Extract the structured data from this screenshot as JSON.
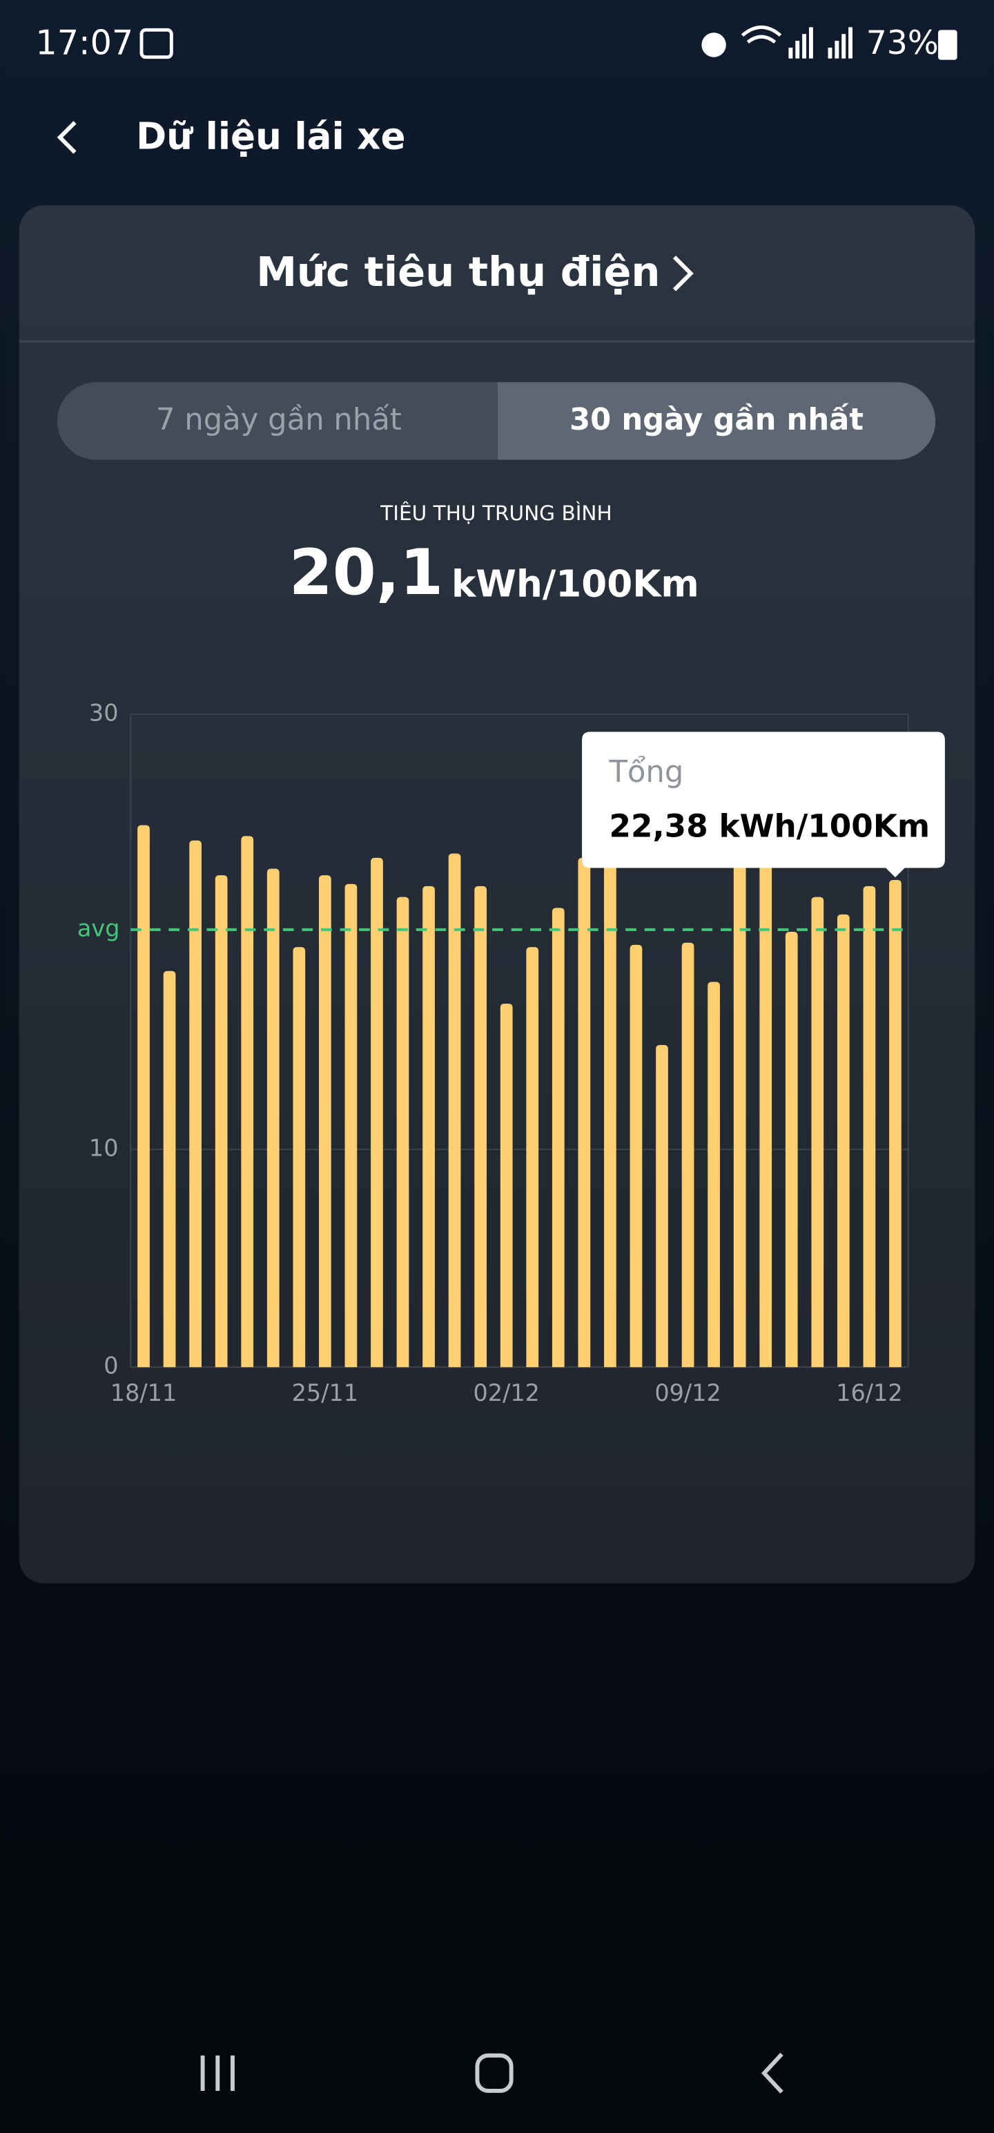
{
  "status_bar": {
    "time": "17:07",
    "battery": "73%"
  },
  "header": {
    "title": "Dữ liệu lái xe"
  },
  "card": {
    "title": "Mức tiêu thụ điện",
    "tabs": [
      "7 ngày gần nhất",
      "30 ngày gần nhất"
    ],
    "average_label": "TIÊU THỤ TRUNG BÌNH",
    "average_value": "20,1",
    "average_unit": "kWh/100Km"
  },
  "chart_data": {
    "type": "bar",
    "categories": [
      "18/11",
      null,
      null,
      null,
      null,
      null,
      null,
      "25/11",
      null,
      null,
      null,
      null,
      null,
      null,
      "02/12",
      null,
      null,
      null,
      null,
      null,
      null,
      "09/12",
      null,
      null,
      null,
      null,
      null,
      null,
      "16/12",
      null
    ],
    "values": [
      24.9,
      18.2,
      24.2,
      22.6,
      24.4,
      22.9,
      19.3,
      22.6,
      22.2,
      23.4,
      21.6,
      22.1,
      23.6,
      22.1,
      16.7,
      19.3,
      21.1,
      23.4,
      23.4,
      19.4,
      14.8,
      19.5,
      17.7,
      23.1,
      23.1,
      20.0,
      21.6,
      20.8,
      22.1,
      22.38
    ],
    "color": "#ffcf70",
    "ylim": [
      0,
      30
    ],
    "yticks": [
      0,
      10,
      30
    ],
    "grid": true,
    "avg_line": {
      "value": 20.1,
      "label": "avg",
      "color": "#46c57a"
    },
    "tooltip": {
      "title": "Tổng",
      "label": "22,38 kWh/100Km"
    }
  }
}
